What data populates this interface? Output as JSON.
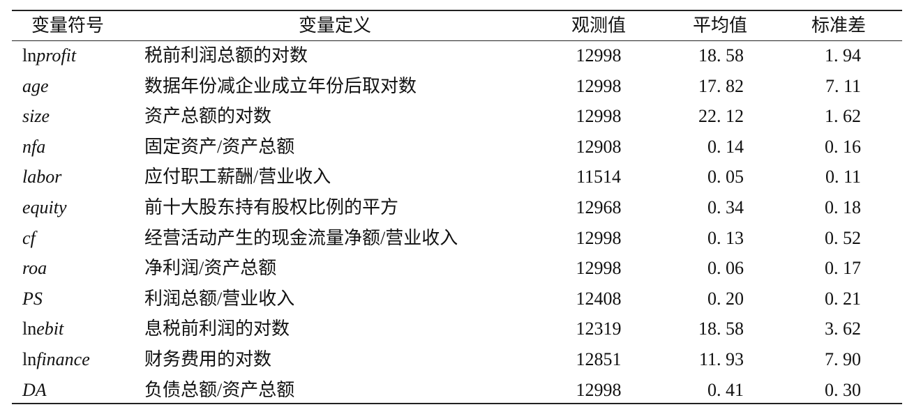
{
  "headers": {
    "symbol": "变量符号",
    "definition": "变量定义",
    "obs": "观测值",
    "mean": "平均值",
    "sd": "标准差"
  },
  "rows": [
    {
      "prefix": "ln",
      "var": "profit",
      "definition": "税前利润总额的对数",
      "obs": "12998",
      "mean": "18. 58",
      "sd": "1. 94"
    },
    {
      "prefix": "",
      "var": "age",
      "definition": "数据年份减企业成立年份后取对数",
      "obs": "12998",
      "mean": "17. 82",
      "sd": "7. 11"
    },
    {
      "prefix": "",
      "var": "size",
      "definition": "资产总额的对数",
      "obs": "12998",
      "mean": "22. 12",
      "sd": "1. 62"
    },
    {
      "prefix": "",
      "var": "nfa",
      "definition": "固定资产/资产总额",
      "obs": "12908",
      "mean": "0. 14",
      "sd": "0. 16"
    },
    {
      "prefix": "",
      "var": "labor",
      "definition": "应付职工薪酬/营业收入",
      "obs": "11514",
      "mean": "0. 05",
      "sd": "0. 11"
    },
    {
      "prefix": "",
      "var": "equity",
      "definition": "前十大股东持有股权比例的平方",
      "obs": "12968",
      "mean": "0. 34",
      "sd": "0. 18"
    },
    {
      "prefix": "",
      "var": "cf",
      "definition": "经营活动产生的现金流量净额/营业收入",
      "obs": "12998",
      "mean": "0. 13",
      "sd": "0. 52"
    },
    {
      "prefix": "",
      "var": "roa",
      "definition": "净利润/资产总额",
      "obs": "12998",
      "mean": "0. 06",
      "sd": "0. 17"
    },
    {
      "prefix": "",
      "var": "PS",
      "definition": "利润总额/营业收入",
      "obs": "12408",
      "mean": "0. 20",
      "sd": "0. 21"
    },
    {
      "prefix": "ln",
      "var": "ebit",
      "definition": "息税前利润的对数",
      "obs": "12319",
      "mean": "18. 58",
      "sd": "3. 62"
    },
    {
      "prefix": "ln",
      "var": "finance",
      "definition": "财务费用的对数",
      "obs": "12851",
      "mean": "11. 93",
      "sd": "7. 90"
    },
    {
      "prefix": "",
      "var": "DA",
      "definition": "负债总额/资产总额",
      "obs": "12998",
      "mean": "0. 41",
      "sd": "0. 30"
    }
  ]
}
